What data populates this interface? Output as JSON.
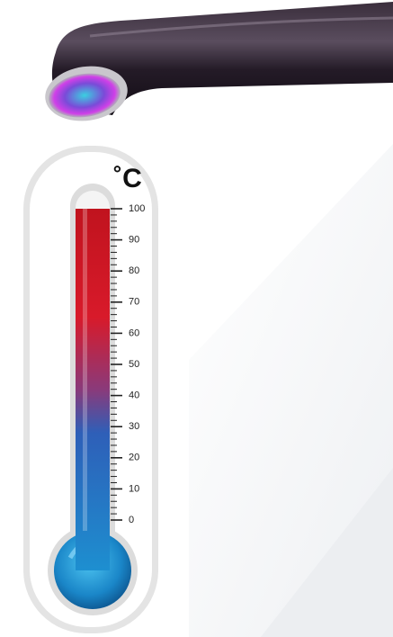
{
  "thermometer": {
    "unit": "˚C",
    "range": [
      0,
      100
    ],
    "ticks": [
      0,
      10,
      20,
      30,
      40,
      50,
      60,
      70,
      80,
      90,
      100
    ],
    "value": 100
  }
}
